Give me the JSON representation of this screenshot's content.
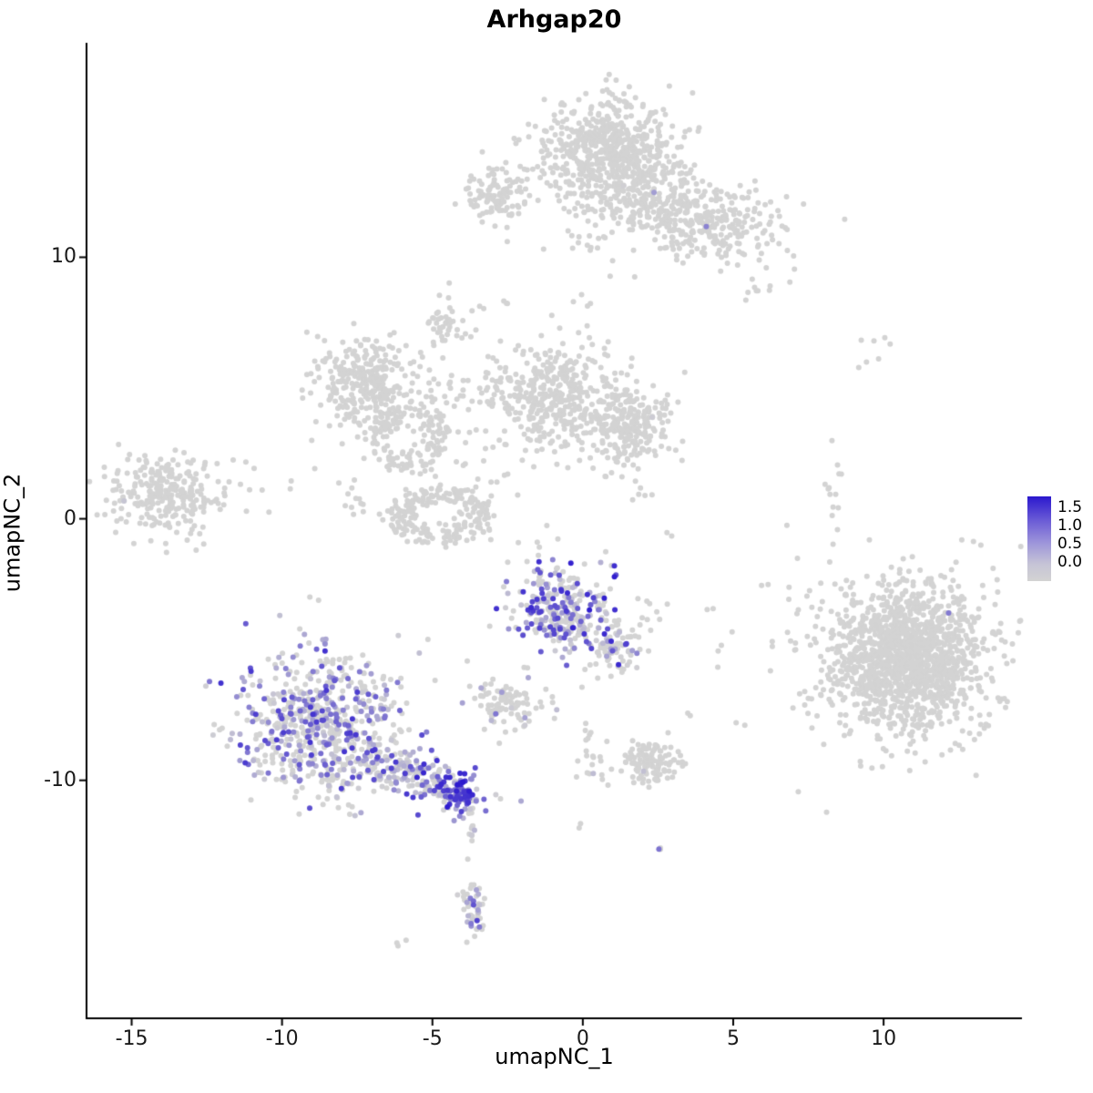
{
  "title": "Arhgap20",
  "chart_data": {
    "type": "scatter",
    "title": "Arhgap20",
    "xlabel": "umapNC_1",
    "ylabel": "umapNC_2",
    "xlim": [
      -16.5,
      14.6
    ],
    "ylim": [
      -19.1,
      18.2
    ],
    "x_ticks": [
      -15,
      -10,
      -5,
      0,
      5,
      10
    ],
    "y_ticks": [
      10,
      0,
      -10
    ],
    "grid": false,
    "point_radius_px": 3,
    "seed": 20,
    "colorscale": {
      "low": "#d3d3d3",
      "high": "#2b18ce",
      "vmin": 0.0,
      "vmax": 1.5
    },
    "legend": {
      "position": "right",
      "labels": [
        "1.5",
        "1.0",
        "0.5",
        "0.0"
      ]
    },
    "clusters": [
      {
        "name": "top-main-blob",
        "cx": 0.9,
        "cy": 13.9,
        "sx": 1.15,
        "sy": 1.05,
        "n": 650,
        "p": 0.002,
        "emax": 0.5
      },
      {
        "name": "top-right-arm",
        "cx": 3.6,
        "cy": 11.7,
        "sx": 1.6,
        "sy": 0.8,
        "rot": -18,
        "n": 420,
        "p": 0.004,
        "emax": 1.0
      },
      {
        "name": "top-left-lobe",
        "cx": -2.9,
        "cy": 12.3,
        "sx": 0.55,
        "sy": 0.6,
        "n": 100,
        "p": 0,
        "emax": 0
      },
      {
        "name": "top-under-sparse",
        "cx": -0.6,
        "cy": 10.6,
        "sx": 1.4,
        "sy": 0.7,
        "n": 22,
        "p": 0,
        "emax": 0
      },
      {
        "name": "top-right-tip",
        "cx": 5.8,
        "cy": 9.1,
        "sx": 0.45,
        "sy": 0.4,
        "n": 10,
        "p": 0,
        "emax": 0
      },
      {
        "name": "upper-spur",
        "cx": -4.6,
        "cy": 7.5,
        "sx": 0.3,
        "sy": 0.55,
        "n": 38,
        "p": 0,
        "emax": 0
      },
      {
        "name": "upper-spur-trail",
        "cx": -3.6,
        "cy": 8.1,
        "sx": 0.5,
        "sy": 0.6,
        "n": 10,
        "p": 0,
        "emax": 0
      },
      {
        "name": "mid-connector-up",
        "cx": 0.3,
        "cy": 7.3,
        "sx": 0.3,
        "sy": 0.9,
        "n": 12,
        "p": 0,
        "emax": 0
      },
      {
        "name": "mid-left-blob",
        "cx": -7.3,
        "cy": 5.2,
        "sx": 0.85,
        "sy": 0.95,
        "n": 300,
        "p": 0.002,
        "emax": 0.4
      },
      {
        "name": "mid-left-ring",
        "cx": -5.8,
        "cy": 3.1,
        "shape": "ring",
        "rx": 1.05,
        "ry": 0.95,
        "th": 0.28,
        "n": 150,
        "p": 0.002,
        "emax": 0.4
      },
      {
        "name": "mid-band",
        "cx": -3.6,
        "cy": 4.9,
        "sx": 1.2,
        "sy": 0.45,
        "n": 70,
        "p": 0,
        "emax": 0
      },
      {
        "name": "mid-center-blob",
        "cx": -0.9,
        "cy": 4.7,
        "sx": 0.85,
        "sy": 0.95,
        "n": 340,
        "p": 0.003,
        "emax": 0.6
      },
      {
        "name": "mid-right-blob",
        "cx": 1.5,
        "cy": 3.6,
        "sx": 0.75,
        "sy": 0.85,
        "n": 280,
        "p": 0.002,
        "emax": 0.4
      },
      {
        "name": "lower-ring",
        "cx": -4.7,
        "cy": 0.1,
        "shape": "ring",
        "rx": 1.35,
        "ry": 0.85,
        "th": 0.25,
        "n": 230,
        "p": 0.004,
        "emax": 0.6
      },
      {
        "name": "mid-scatter",
        "cx": -3.0,
        "cy": 2.4,
        "sx": 1.0,
        "sy": 1.0,
        "n": 30,
        "p": 0.03,
        "emax": 0.6
      },
      {
        "name": "ring-west-bits",
        "cx": -7.8,
        "cy": 0.7,
        "sx": 0.4,
        "sy": 0.5,
        "n": 12,
        "p": 0,
        "emax": 0
      },
      {
        "name": "far-left-cluster",
        "cx": -13.9,
        "cy": 0.9,
        "sx": 0.95,
        "sy": 0.75,
        "n": 270,
        "p": 0.002,
        "emax": 0.3
      },
      {
        "name": "far-left-sparse",
        "cx": -11.2,
        "cy": 1.4,
        "sx": 0.8,
        "sy": 0.8,
        "n": 12,
        "p": 0,
        "emax": 0
      },
      {
        "name": "right-string",
        "cx": 8.4,
        "cy": 1.1,
        "sx": 0.18,
        "sy": 1.1,
        "n": 14,
        "p": 0,
        "emax": 0
      },
      {
        "name": "right-upper-dots",
        "cx": 9.8,
        "cy": 6.5,
        "sx": 0.5,
        "sy": 0.3,
        "n": 7,
        "p": 0,
        "emax": 0
      },
      {
        "name": "right-core",
        "cx": 10.8,
        "cy": -5.3,
        "sx": 1.15,
        "sy": 1.2,
        "n": 950,
        "p": 0.004,
        "emax": 1.2
      },
      {
        "name": "right-halo",
        "cx": 10.7,
        "cy": -5.4,
        "sx": 1.8,
        "sy": 1.7,
        "n": 620,
        "p": 0.003,
        "emax": 1.0
      },
      {
        "name": "right-west-sparse",
        "cx": 7.2,
        "cy": -3.0,
        "sx": 0.9,
        "sy": 1.2,
        "n": 8,
        "p": 0,
        "emax": 0
      },
      {
        "name": "center-expressed",
        "cx": -0.7,
        "cy": -3.6,
        "sx": 0.8,
        "sy": 0.85,
        "n": 300,
        "p": 0.55,
        "emax": 1.5,
        "eskew": 1.6
      },
      {
        "name": "center-expressed-arm",
        "cx": 0.95,
        "cy": -4.9,
        "sx": 0.45,
        "sy": 0.65,
        "n": 80,
        "p": 0.4,
        "emax": 1.4
      },
      {
        "name": "small-mid-low",
        "cx": -2.6,
        "cy": -7.0,
        "sx": 0.6,
        "sy": 0.5,
        "n": 95,
        "p": 0.1,
        "emax": 1.0
      },
      {
        "name": "purple-dot-mid",
        "cx": -0.9,
        "cy": -7.3,
        "sx": 0.12,
        "sy": 0.15,
        "n": 3,
        "p": 0.7,
        "emax": 1.0
      },
      {
        "name": "left-expressed-main",
        "cx": -8.6,
        "cy": -7.9,
        "sx": 1.35,
        "sy": 1.35,
        "n": 680,
        "p": 0.45,
        "emax": 1.3,
        "eskew": 1.4
      },
      {
        "name": "left-expressed-tail",
        "cx": -5.6,
        "cy": -9.8,
        "sx": 1.15,
        "sy": 0.4,
        "rot": -25,
        "n": 210,
        "p": 0.7,
        "emax": 1.4
      },
      {
        "name": "tail-knot",
        "cx": -4.05,
        "cy": -10.5,
        "sx": 0.3,
        "sy": 0.3,
        "n": 80,
        "p": 0.9,
        "emax": 1.5,
        "eskew": 0.7
      },
      {
        "name": "below-trail",
        "cx": -3.75,
        "cy": -11.8,
        "sx": 0.15,
        "sy": 0.55,
        "n": 12,
        "p": 0.3,
        "emax": 0.9
      },
      {
        "name": "bottom-drop",
        "cx": -3.62,
        "cy": -14.9,
        "sx": 0.2,
        "sy": 0.6,
        "n": 48,
        "p": 0.6,
        "emax": 1.2
      },
      {
        "name": "stray-bottom-left",
        "cx": -6.2,
        "cy": -16.2,
        "sx": 0.18,
        "sy": 0.12,
        "n": 3,
        "p": 0,
        "emax": 0
      },
      {
        "name": "bottom-mid-cluster",
        "cx": 2.2,
        "cy": -9.3,
        "sx": 0.5,
        "sy": 0.38,
        "n": 120,
        "p": 0.01,
        "emax": 0.5
      },
      {
        "name": "bottom-mid-string",
        "cx": 0.2,
        "cy": -9.1,
        "sx": 0.25,
        "sy": 1.0,
        "n": 22,
        "p": 0.05,
        "emax": 0.6
      },
      {
        "name": "purple-dot-a",
        "cx": -0.05,
        "cy": -11.7,
        "sx": 0.1,
        "sy": 0.12,
        "n": 2,
        "p": 0.8,
        "emax": 0.9
      },
      {
        "name": "purple-dot-b",
        "cx": 2.6,
        "cy": -12.6,
        "sx": 0.12,
        "sy": 0.12,
        "n": 3,
        "p": 0.8,
        "emax": 1.0
      },
      {
        "name": "center-right-dots",
        "cx": 2.4,
        "cy": -3.8,
        "sx": 0.35,
        "sy": 0.55,
        "n": 12,
        "p": 0.05,
        "emax": 0.6
      },
      {
        "name": "between-sparse",
        "cx": -1.0,
        "cy": -1.2,
        "sx": 0.7,
        "sy": 0.8,
        "n": 7,
        "p": 0,
        "emax": 0
      },
      {
        "name": "stray-1",
        "cx": 3.5,
        "cy": -7.6,
        "sx": 0.1,
        "sy": 0.1,
        "n": 2,
        "p": 0,
        "emax": 0
      },
      {
        "name": "stray-2",
        "cx": 5.3,
        "cy": -7.9,
        "sx": 0.1,
        "sy": 0.1,
        "n": 2,
        "p": 0,
        "emax": 0
      },
      {
        "name": "stray-3",
        "cx": 4.3,
        "cy": -3.4,
        "sx": 0.12,
        "sy": 0.12,
        "n": 2,
        "p": 0,
        "emax": 0
      },
      {
        "name": "stray-4",
        "cx": 4.5,
        "cy": -4.9,
        "sx": 0.1,
        "sy": 0.1,
        "n": 2,
        "p": 0,
        "emax": 0
      },
      {
        "name": "stray-5",
        "cx": 2.9,
        "cy": -0.5,
        "sx": 0.1,
        "sy": 0.1,
        "n": 2,
        "p": 0,
        "emax": 0
      },
      {
        "name": "stray-6",
        "cx": 1.9,
        "cy": 0.9,
        "sx": 0.1,
        "sy": 0.1,
        "n": 2,
        "p": 0,
        "emax": 0
      },
      {
        "name": "stray-7",
        "cx": 6.8,
        "cy": -0.3,
        "sx": 0.08,
        "sy": 0.08,
        "n": 1,
        "p": 0,
        "emax": 0
      },
      {
        "name": "stray-8",
        "cx": -9.0,
        "cy": -3.2,
        "sx": 0.15,
        "sy": 0.15,
        "n": 2,
        "p": 0.3,
        "emax": 0.6
      }
    ]
  }
}
